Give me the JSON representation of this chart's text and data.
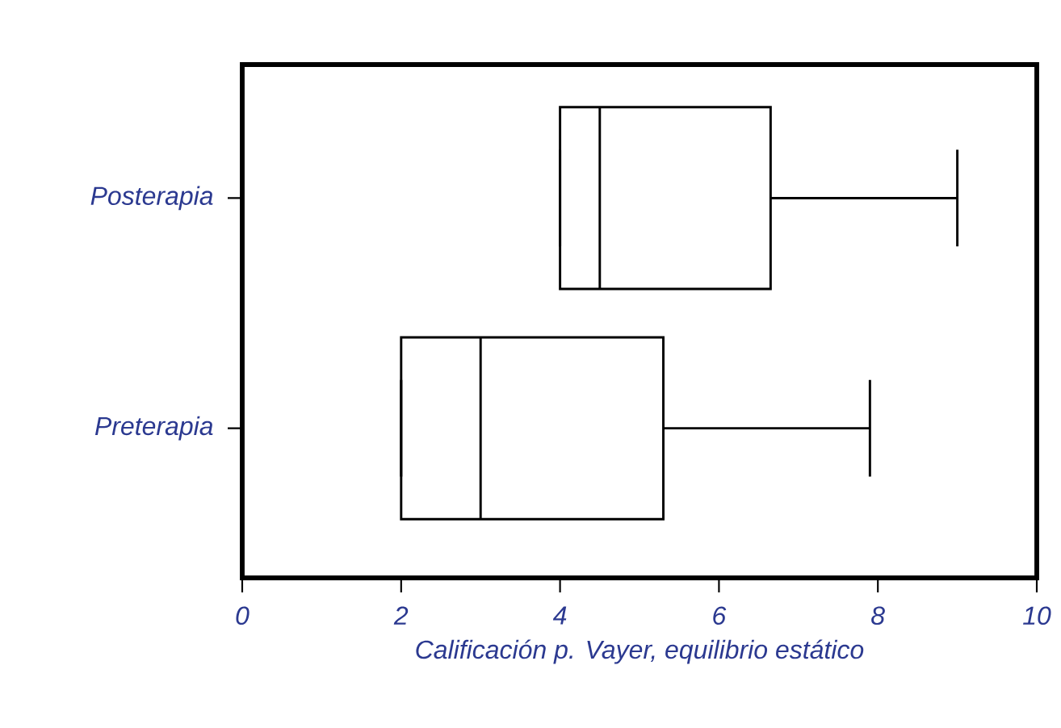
{
  "chart_data": {
    "type": "box",
    "orientation": "horizontal",
    "xlabel": "Calificación p. Vayer, equilibrio estático",
    "categories": [
      "Posterapia",
      "Preterapia"
    ],
    "boxes": [
      {
        "low": 4,
        "q1": 4,
        "median": 4.5,
        "q3": 6.65,
        "high": 9
      },
      {
        "low": 2,
        "q1": 2,
        "median": 3,
        "q3": 5.3,
        "high": 7.9
      }
    ],
    "xlim": [
      0,
      10
    ],
    "xticks": [
      0,
      2,
      4,
      6,
      8,
      10
    ],
    "grid": false
  }
}
